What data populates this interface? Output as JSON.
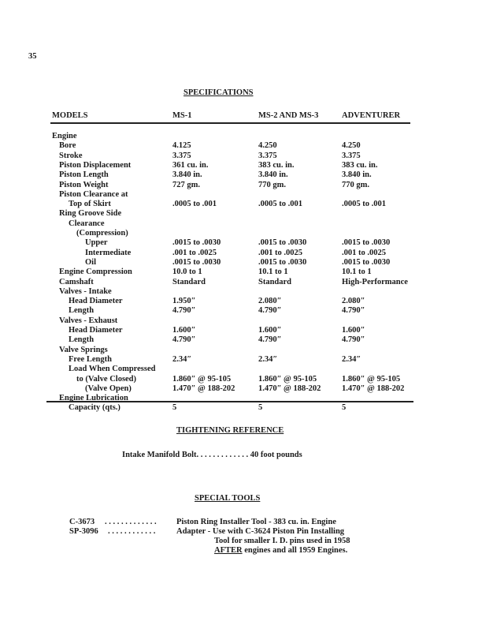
{
  "page_number": "35",
  "specifications": {
    "title": "SPECIFICATIONS",
    "headers": [
      "MODELS",
      "MS-1",
      "MS-2 AND MS-3",
      "ADVENTURER"
    ],
    "rows": [
      {
        "label": "Engine",
        "indent": 0,
        "values": [
          "",
          "",
          ""
        ]
      },
      {
        "label": "Bore",
        "indent": 1,
        "values": [
          "4.125",
          "4.250",
          "4.250"
        ]
      },
      {
        "label": "Stroke",
        "indent": 1,
        "values": [
          "3.375",
          "3.375",
          "3.375"
        ]
      },
      {
        "label": "Piston Displacement",
        "indent": 1,
        "values": [
          "361 cu. in.",
          "383 cu. in.",
          "383 cu. in."
        ]
      },
      {
        "label": "Piston Length",
        "indent": 1,
        "values": [
          "3.840 in.",
          "3.840 in.",
          "3.840 in."
        ]
      },
      {
        "label": "Piston Weight",
        "indent": 1,
        "values": [
          "727 gm.",
          "770 gm.",
          "770 gm."
        ]
      },
      {
        "label": "Piston Clearance at",
        "indent": 1,
        "values": [
          "",
          "",
          ""
        ]
      },
      {
        "label": "Top of Skirt",
        "indent": 2,
        "values": [
          ".0005 to .001",
          ".0005 to .001",
          ".0005 to .001"
        ]
      },
      {
        "label": "Ring Groove Side",
        "indent": 1,
        "values": [
          "",
          "",
          ""
        ]
      },
      {
        "label": "Clearance",
        "indent": 2,
        "values": [
          "",
          "",
          ""
        ]
      },
      {
        "label": "(Compression)",
        "indent": 3,
        "values": [
          "",
          "",
          ""
        ]
      },
      {
        "label": "Upper",
        "indent": 4,
        "values": [
          ".0015 to .0030",
          ".0015 to .0030",
          ".0015 to .0030"
        ]
      },
      {
        "label": "Intermediate",
        "indent": 4,
        "values": [
          ".001 to .0025",
          ".001 to .0025",
          ".001 to .0025"
        ]
      },
      {
        "label": "Oil",
        "indent": 4,
        "values": [
          ".0015 to .0030",
          ".0015 to .0030",
          ".0015 to .0030"
        ]
      },
      {
        "label": "Engine Compression",
        "indent": 1,
        "values": [
          "10.0 to 1",
          "10.1 to 1",
          "10.1 to 1"
        ]
      },
      {
        "label": "Camshaft",
        "indent": 1,
        "values": [
          "Standard",
          "Standard",
          "High-Performance"
        ]
      },
      {
        "label": "Valves - Intake",
        "indent": 1,
        "values": [
          "",
          "",
          ""
        ]
      },
      {
        "label": "Head Diameter",
        "indent": 2,
        "values": [
          "1.950″",
          "2.080″",
          "2.080″"
        ]
      },
      {
        "label": "Length",
        "indent": 2,
        "values": [
          "4.790″",
          "4.790″",
          "4.790″"
        ]
      },
      {
        "label": "Valves - Exhaust",
        "indent": 1,
        "values": [
          "",
          "",
          ""
        ]
      },
      {
        "label": "Head Diameter",
        "indent": 2,
        "values": [
          "1.600″",
          "1.600″",
          "1.600″"
        ]
      },
      {
        "label": "Length",
        "indent": 2,
        "values": [
          "4.790″",
          "4.790″",
          "4.790″"
        ]
      },
      {
        "label": "Valve Springs",
        "indent": 1,
        "values": [
          "",
          "",
          ""
        ]
      },
      {
        "label": "Free Length",
        "indent": 2,
        "values": [
          "2.34″",
          "2.34″",
          "2.34″"
        ]
      },
      {
        "label": "Load When Compressed",
        "indent": 2,
        "values": [
          "",
          "",
          ""
        ]
      },
      {
        "label": "to (Valve Closed)",
        "indent": 3,
        "values": [
          "1.860″ @ 95-105",
          "1.860″ @ 95-105",
          "1.860″ @ 95-105"
        ]
      },
      {
        "label": "(Valve Open)",
        "indent": 4,
        "values": [
          "1.470″ @ 188-202",
          "1.470″ @ 188-202",
          "1.470″ @ 188-202"
        ]
      },
      {
        "label": "Engine Lubrication",
        "indent": 1,
        "values": [
          "",
          "",
          ""
        ]
      },
      {
        "label": "Capacity (qts.)",
        "indent": 2,
        "values": [
          "5",
          "5",
          "5"
        ]
      }
    ]
  },
  "tightening": {
    "title": "TIGHTENING REFERENCE",
    "item": "Intake Manifold Bolt",
    "leader": ". . . . . . . . . . . . .",
    "value": "40 foot pounds"
  },
  "special_tools": {
    "title": "SPECIAL TOOLS",
    "tools": [
      {
        "code": "C-3673",
        "leader": ". . . . . . . . . . . . .",
        "lines": [
          "Piston Ring Installer Tool - 383 cu. in. Engine"
        ]
      },
      {
        "code": "SP-3096",
        "leader": ". . . . . . . . . . . .",
        "lines": [
          "Adapter - Use with C-3624 Piston Pin Installing",
          "Tool for smaller I. D. pins used in 1958"
        ]
      }
    ],
    "last_line_emphasis": "AFTER",
    "last_line_rest": " engines and all 1959 Engines."
  }
}
